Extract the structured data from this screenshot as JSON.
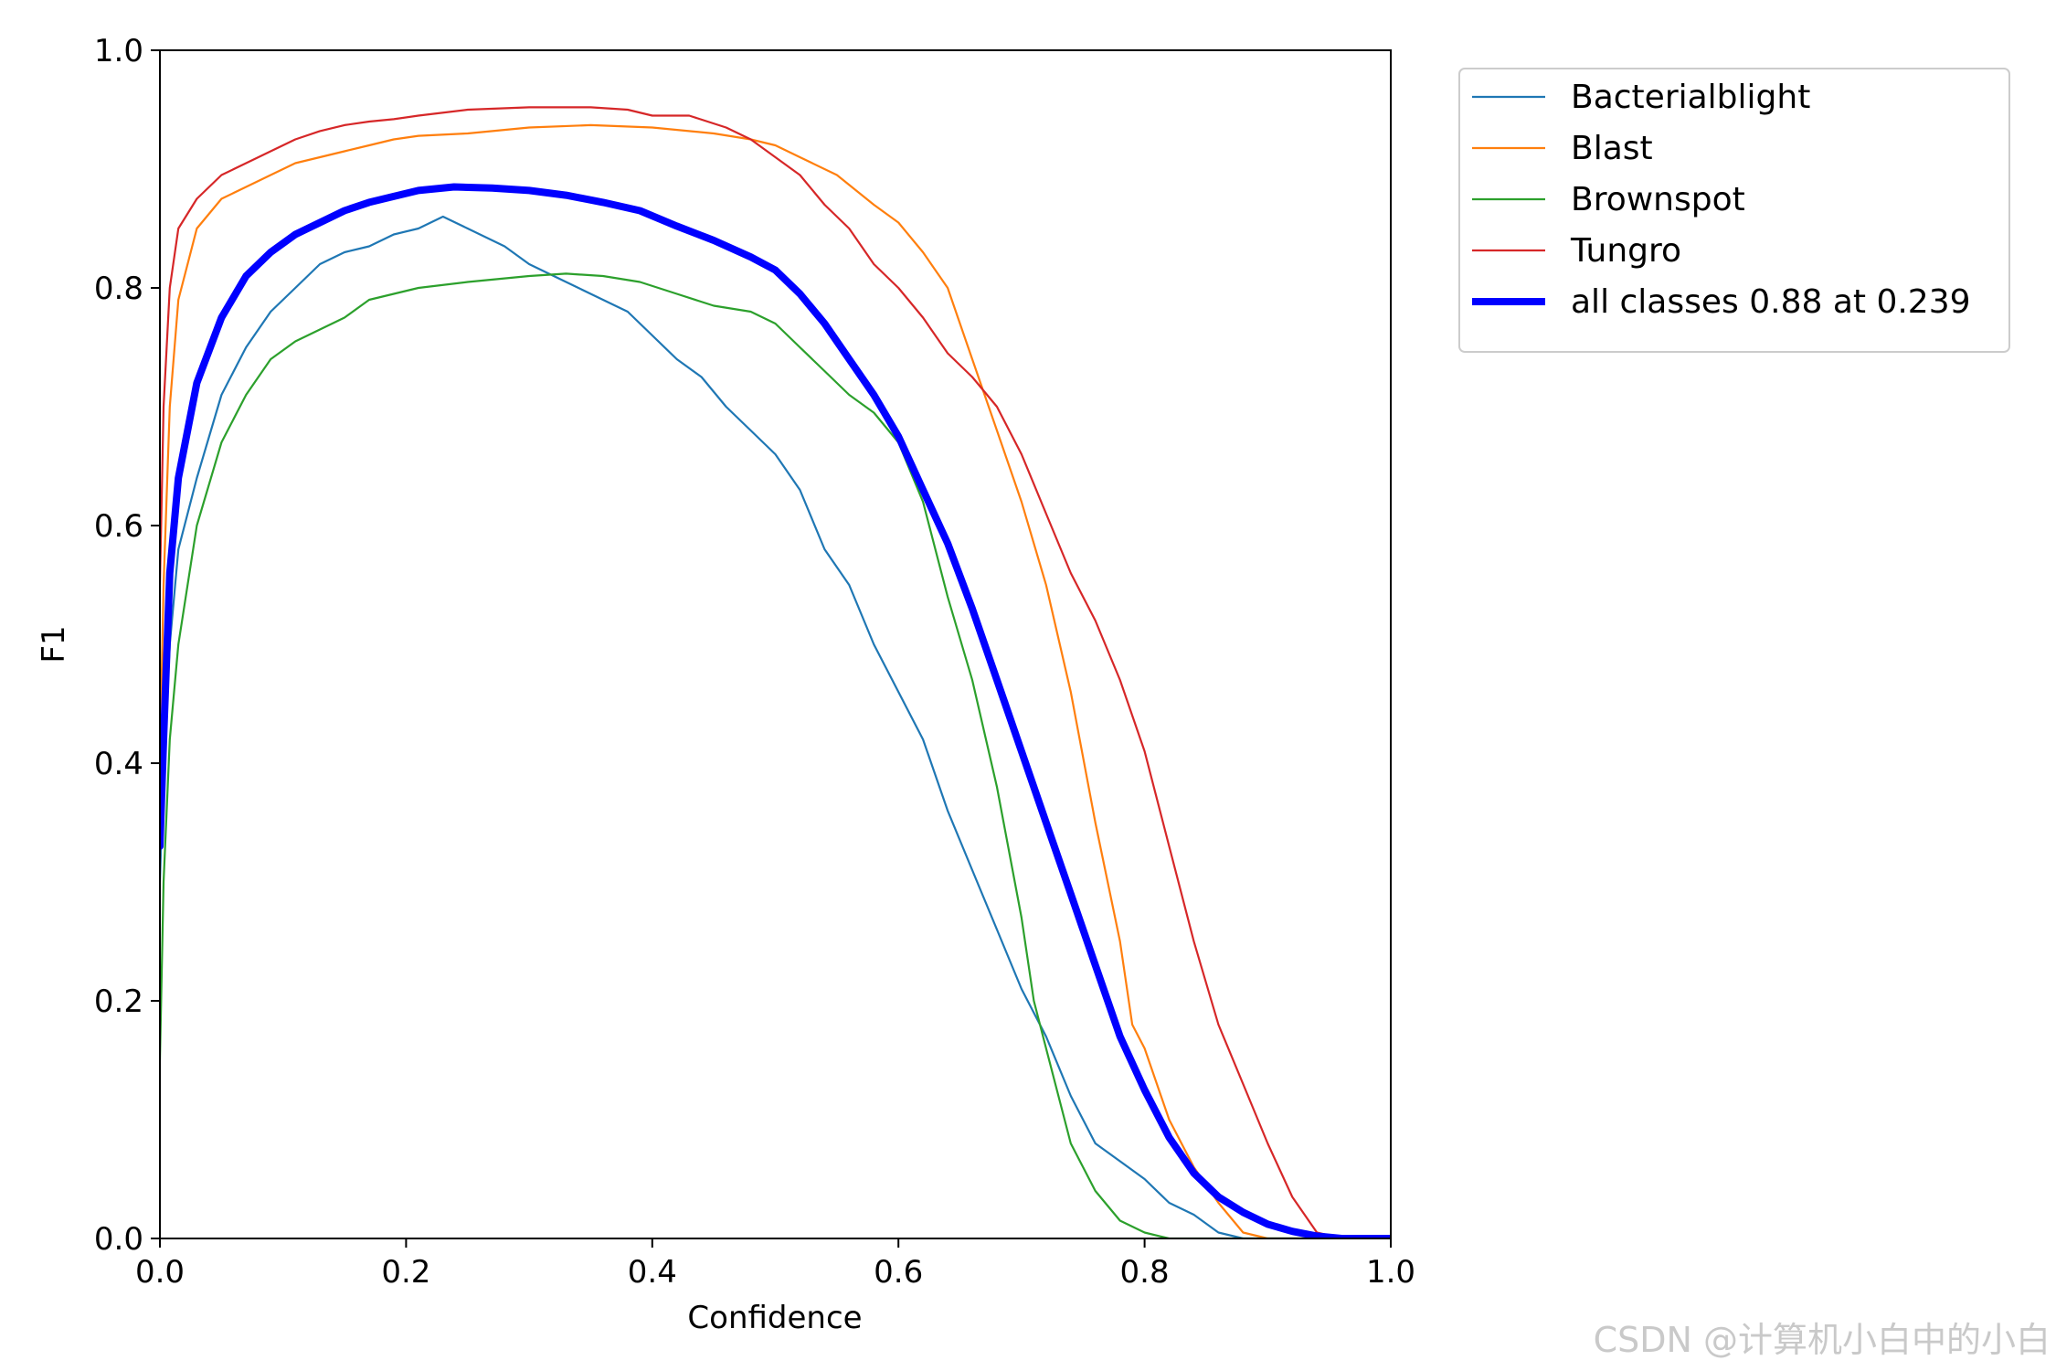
{
  "chart_data": {
    "type": "line",
    "title": "",
    "xlabel": "Confidence",
    "ylabel": "F1",
    "xlim": [
      0,
      1
    ],
    "ylim": [
      0,
      1
    ],
    "xticks": [
      "0.0",
      "0.2",
      "0.4",
      "0.6",
      "0.8",
      "1.0"
    ],
    "yticks": [
      "0.0",
      "0.2",
      "0.4",
      "0.6",
      "0.8",
      "1.0"
    ],
    "grid": false,
    "legend_position": "outside-top-right",
    "series": [
      {
        "name": "Bacterialblight",
        "color": "#1f77b4",
        "width": 2.2,
        "points": [
          [
            0,
            0.3
          ],
          [
            0.003,
            0.4
          ],
          [
            0.008,
            0.5
          ],
          [
            0.015,
            0.58
          ],
          [
            0.03,
            0.64
          ],
          [
            0.05,
            0.71
          ],
          [
            0.07,
            0.75
          ],
          [
            0.09,
            0.78
          ],
          [
            0.11,
            0.8
          ],
          [
            0.13,
            0.82
          ],
          [
            0.15,
            0.83
          ],
          [
            0.17,
            0.835
          ],
          [
            0.19,
            0.845
          ],
          [
            0.21,
            0.85
          ],
          [
            0.23,
            0.86
          ],
          [
            0.25,
            0.85
          ],
          [
            0.28,
            0.835
          ],
          [
            0.3,
            0.82
          ],
          [
            0.32,
            0.81
          ],
          [
            0.34,
            0.8
          ],
          [
            0.36,
            0.79
          ],
          [
            0.38,
            0.78
          ],
          [
            0.4,
            0.76
          ],
          [
            0.42,
            0.74
          ],
          [
            0.44,
            0.725
          ],
          [
            0.46,
            0.7
          ],
          [
            0.48,
            0.68
          ],
          [
            0.5,
            0.66
          ],
          [
            0.52,
            0.63
          ],
          [
            0.54,
            0.58
          ],
          [
            0.56,
            0.55
          ],
          [
            0.58,
            0.5
          ],
          [
            0.6,
            0.46
          ],
          [
            0.62,
            0.42
          ],
          [
            0.64,
            0.36
          ],
          [
            0.66,
            0.31
          ],
          [
            0.68,
            0.26
          ],
          [
            0.7,
            0.21
          ],
          [
            0.72,
            0.17
          ],
          [
            0.74,
            0.12
          ],
          [
            0.76,
            0.08
          ],
          [
            0.78,
            0.065
          ],
          [
            0.8,
            0.05
          ],
          [
            0.82,
            0.03
          ],
          [
            0.84,
            0.02
          ],
          [
            0.86,
            0.005
          ],
          [
            0.88,
            0.0
          ],
          [
            0.9,
            0.0
          ],
          [
            1.0,
            0.0
          ]
        ]
      },
      {
        "name": "Blast",
        "color": "#ff7f0e",
        "width": 2.2,
        "points": [
          [
            0,
            0.4
          ],
          [
            0.003,
            0.55
          ],
          [
            0.008,
            0.7
          ],
          [
            0.015,
            0.79
          ],
          [
            0.03,
            0.85
          ],
          [
            0.05,
            0.875
          ],
          [
            0.07,
            0.885
          ],
          [
            0.09,
            0.895
          ],
          [
            0.11,
            0.905
          ],
          [
            0.13,
            0.91
          ],
          [
            0.15,
            0.915
          ],
          [
            0.17,
            0.92
          ],
          [
            0.19,
            0.925
          ],
          [
            0.21,
            0.928
          ],
          [
            0.25,
            0.93
          ],
          [
            0.3,
            0.935
          ],
          [
            0.35,
            0.937
          ],
          [
            0.4,
            0.935
          ],
          [
            0.45,
            0.93
          ],
          [
            0.48,
            0.925
          ],
          [
            0.5,
            0.92
          ],
          [
            0.52,
            0.91
          ],
          [
            0.55,
            0.895
          ],
          [
            0.58,
            0.87
          ],
          [
            0.6,
            0.855
          ],
          [
            0.62,
            0.83
          ],
          [
            0.64,
            0.8
          ],
          [
            0.66,
            0.74
          ],
          [
            0.68,
            0.68
          ],
          [
            0.7,
            0.62
          ],
          [
            0.72,
            0.55
          ],
          [
            0.74,
            0.46
          ],
          [
            0.76,
            0.35
          ],
          [
            0.78,
            0.25
          ],
          [
            0.79,
            0.18
          ],
          [
            0.8,
            0.16
          ],
          [
            0.82,
            0.1
          ],
          [
            0.84,
            0.06
          ],
          [
            0.86,
            0.03
          ],
          [
            0.88,
            0.005
          ],
          [
            0.9,
            0.0
          ],
          [
            1.0,
            0.0
          ]
        ]
      },
      {
        "name": "Brownspot",
        "color": "#2ca02c",
        "width": 2.2,
        "points": [
          [
            0,
            0.15
          ],
          [
            0.003,
            0.3
          ],
          [
            0.008,
            0.42
          ],
          [
            0.015,
            0.5
          ],
          [
            0.03,
            0.6
          ],
          [
            0.05,
            0.67
          ],
          [
            0.07,
            0.71
          ],
          [
            0.09,
            0.74
          ],
          [
            0.11,
            0.755
          ],
          [
            0.13,
            0.765
          ],
          [
            0.15,
            0.775
          ],
          [
            0.17,
            0.79
          ],
          [
            0.19,
            0.795
          ],
          [
            0.21,
            0.8
          ],
          [
            0.25,
            0.805
          ],
          [
            0.3,
            0.81
          ],
          [
            0.33,
            0.812
          ],
          [
            0.36,
            0.81
          ],
          [
            0.39,
            0.805
          ],
          [
            0.42,
            0.795
          ],
          [
            0.45,
            0.785
          ],
          [
            0.48,
            0.78
          ],
          [
            0.5,
            0.77
          ],
          [
            0.52,
            0.75
          ],
          [
            0.54,
            0.73
          ],
          [
            0.56,
            0.71
          ],
          [
            0.58,
            0.695
          ],
          [
            0.6,
            0.67
          ],
          [
            0.62,
            0.62
          ],
          [
            0.64,
            0.54
          ],
          [
            0.66,
            0.47
          ],
          [
            0.68,
            0.38
          ],
          [
            0.7,
            0.27
          ],
          [
            0.71,
            0.2
          ],
          [
            0.72,
            0.16
          ],
          [
            0.74,
            0.08
          ],
          [
            0.76,
            0.04
          ],
          [
            0.78,
            0.015
          ],
          [
            0.8,
            0.005
          ],
          [
            0.82,
            0.0
          ],
          [
            1.0,
            0.0
          ]
        ]
      },
      {
        "name": "Tungro",
        "color": "#d62728",
        "width": 2.2,
        "points": [
          [
            0,
            0.55
          ],
          [
            0.003,
            0.7
          ],
          [
            0.008,
            0.8
          ],
          [
            0.015,
            0.85
          ],
          [
            0.03,
            0.875
          ],
          [
            0.05,
            0.895
          ],
          [
            0.07,
            0.905
          ],
          [
            0.09,
            0.915
          ],
          [
            0.11,
            0.925
          ],
          [
            0.13,
            0.932
          ],
          [
            0.15,
            0.937
          ],
          [
            0.17,
            0.94
          ],
          [
            0.19,
            0.942
          ],
          [
            0.21,
            0.945
          ],
          [
            0.25,
            0.95
          ],
          [
            0.3,
            0.952
          ],
          [
            0.35,
            0.952
          ],
          [
            0.38,
            0.95
          ],
          [
            0.4,
            0.945
          ],
          [
            0.43,
            0.945
          ],
          [
            0.46,
            0.935
          ],
          [
            0.48,
            0.925
          ],
          [
            0.5,
            0.91
          ],
          [
            0.52,
            0.895
          ],
          [
            0.54,
            0.87
          ],
          [
            0.56,
            0.85
          ],
          [
            0.58,
            0.82
          ],
          [
            0.6,
            0.8
          ],
          [
            0.62,
            0.775
          ],
          [
            0.64,
            0.745
          ],
          [
            0.66,
            0.725
          ],
          [
            0.68,
            0.7
          ],
          [
            0.7,
            0.66
          ],
          [
            0.72,
            0.61
          ],
          [
            0.74,
            0.56
          ],
          [
            0.76,
            0.52
          ],
          [
            0.78,
            0.47
          ],
          [
            0.8,
            0.41
          ],
          [
            0.82,
            0.33
          ],
          [
            0.84,
            0.25
          ],
          [
            0.86,
            0.18
          ],
          [
            0.88,
            0.13
          ],
          [
            0.9,
            0.08
          ],
          [
            0.92,
            0.035
          ],
          [
            0.94,
            0.005
          ],
          [
            0.96,
            0.0
          ],
          [
            1.0,
            0.0
          ]
        ]
      },
      {
        "name": "all classes 0.88 at 0.239",
        "color": "#0000ff",
        "width": 8,
        "points": [
          [
            0,
            0.33
          ],
          [
            0.003,
            0.42
          ],
          [
            0.008,
            0.56
          ],
          [
            0.015,
            0.64
          ],
          [
            0.03,
            0.72
          ],
          [
            0.05,
            0.775
          ],
          [
            0.07,
            0.81
          ],
          [
            0.09,
            0.83
          ],
          [
            0.11,
            0.845
          ],
          [
            0.13,
            0.855
          ],
          [
            0.15,
            0.865
          ],
          [
            0.17,
            0.872
          ],
          [
            0.19,
            0.877
          ],
          [
            0.21,
            0.882
          ],
          [
            0.239,
            0.885
          ],
          [
            0.27,
            0.884
          ],
          [
            0.3,
            0.882
          ],
          [
            0.33,
            0.878
          ],
          [
            0.36,
            0.872
          ],
          [
            0.39,
            0.865
          ],
          [
            0.42,
            0.852
          ],
          [
            0.45,
            0.84
          ],
          [
            0.48,
            0.826
          ],
          [
            0.5,
            0.815
          ],
          [
            0.52,
            0.795
          ],
          [
            0.54,
            0.77
          ],
          [
            0.56,
            0.74
          ],
          [
            0.58,
            0.71
          ],
          [
            0.6,
            0.675
          ],
          [
            0.62,
            0.63
          ],
          [
            0.64,
            0.585
          ],
          [
            0.66,
            0.53
          ],
          [
            0.68,
            0.47
          ],
          [
            0.7,
            0.41
          ],
          [
            0.72,
            0.35
          ],
          [
            0.74,
            0.29
          ],
          [
            0.76,
            0.23
          ],
          [
            0.78,
            0.17
          ],
          [
            0.8,
            0.125
          ],
          [
            0.82,
            0.085
          ],
          [
            0.84,
            0.055
          ],
          [
            0.86,
            0.035
          ],
          [
            0.88,
            0.022
          ],
          [
            0.9,
            0.012
          ],
          [
            0.92,
            0.006
          ],
          [
            0.94,
            0.002
          ],
          [
            0.96,
            0.0
          ],
          [
            1.0,
            0.0
          ]
        ]
      }
    ]
  },
  "watermark": "CSDN @计算机小白中的小白"
}
